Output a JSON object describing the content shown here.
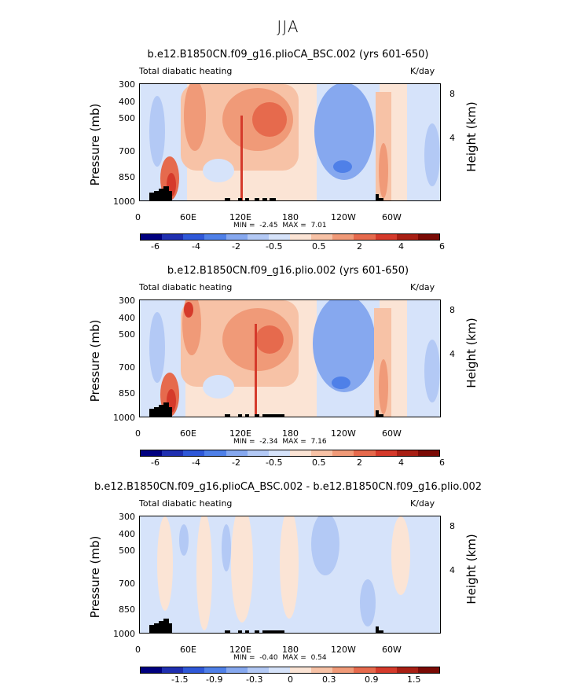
{
  "main_title": "JJA",
  "colors": [
    "#00007f",
    "#1f2fb0",
    "#2f58d8",
    "#4f80e8",
    "#86a8ef",
    "#b3c9f5",
    "#d6e3fa",
    "#fbe4d5",
    "#f7c2a6",
    "#f09a78",
    "#e66a4d",
    "#d53a2b",
    "#a81f14",
    "#7a0a05"
  ],
  "chart_data": [
    {
      "type": "heatmap",
      "title": "b.e12.B1850CN.f09_g16.plioCA_BSC.002 (yrs 601-650)",
      "left_string": "Total diabatic heating",
      "right_string": "K/day",
      "xlabel": "",
      "ylabel": "Pressure (mb)",
      "ylabel_right": "Height (km)",
      "x_ticks": [
        "0",
        "60E",
        "120E",
        "180",
        "120W",
        "60W"
      ],
      "y_ticks": [
        "300",
        "400",
        "500",
        "700",
        "850",
        "1000"
      ],
      "y_right_ticks": [
        "8",
        "4"
      ],
      "stats": {
        "min_label": "MIN =",
        "min": "-2.45",
        "max_label": "MAX =",
        "max": "7.01"
      },
      "colorbar_labels": [
        "-6",
        "-4",
        "-2",
        "-0.5",
        "0.5",
        "2",
        "4",
        "6"
      ],
      "x_range": [
        0,
        360
      ],
      "y_range": [
        1000,
        300
      ]
    },
    {
      "type": "heatmap",
      "title": "b.e12.B1850CN.f09_g16.plio.002 (yrs 601-650)",
      "left_string": "Total diabatic heating",
      "right_string": "K/day",
      "xlabel": "",
      "ylabel": "Pressure (mb)",
      "ylabel_right": "Height (km)",
      "x_ticks": [
        "0",
        "60E",
        "120E",
        "180",
        "120W",
        "60W"
      ],
      "y_ticks": [
        "300",
        "400",
        "500",
        "700",
        "850",
        "1000"
      ],
      "y_right_ticks": [
        "8",
        "4"
      ],
      "stats": {
        "min_label": "MIN =",
        "min": "-2.34",
        "max_label": "MAX =",
        "max": "7.16"
      },
      "colorbar_labels": [
        "-6",
        "-4",
        "-2",
        "-0.5",
        "0.5",
        "2",
        "4",
        "6"
      ],
      "x_range": [
        0,
        360
      ],
      "y_range": [
        1000,
        300
      ]
    },
    {
      "type": "heatmap",
      "title": "b.e12.B1850CN.f09_g16.plioCA_BSC.002 - b.e12.B1850CN.f09_g16.plio.002",
      "left_string": "Total diabatic heating",
      "right_string": "K/day",
      "xlabel": "",
      "ylabel": "Pressure (mb)",
      "ylabel_right": "Height (km)",
      "x_ticks": [
        "0",
        "60E",
        "120E",
        "180",
        "120W",
        "60W"
      ],
      "y_ticks": [
        "300",
        "400",
        "500",
        "700",
        "850",
        "1000"
      ],
      "y_right_ticks": [
        "8",
        "4"
      ],
      "stats": {
        "min_label": "MIN =",
        "min": "-0.40",
        "max_label": "MAX =",
        "max": "0.54"
      },
      "colorbar_labels": [
        "-1.5",
        "-0.9",
        "-0.3",
        "0",
        "0.3",
        "0.9",
        "1.5"
      ],
      "x_range": [
        0,
        360
      ],
      "y_range": [
        1000,
        300
      ]
    }
  ]
}
